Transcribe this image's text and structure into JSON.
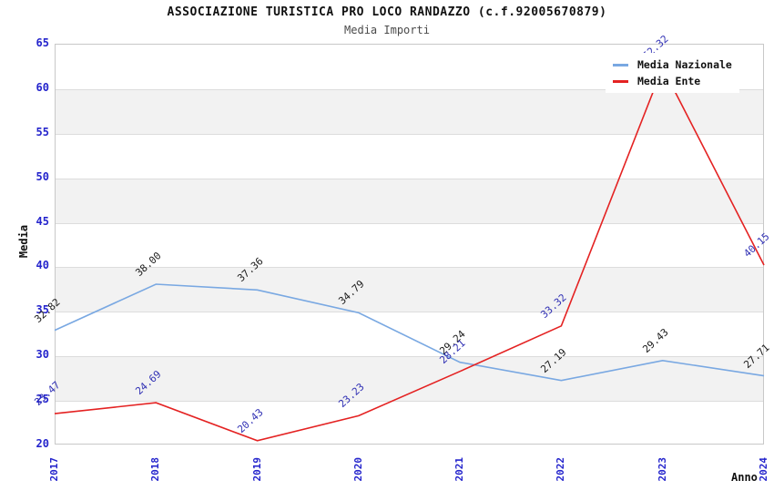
{
  "chart_data": {
    "type": "line",
    "title": "ASSOCIAZIONE TURISTICA PRO LOCO RANDAZZO (c.f.92005670879)",
    "subtitle": "Media Importi",
    "xlabel": "Anno",
    "ylabel": "Media",
    "ylim": [
      20,
      65
    ],
    "y_ticks": [
      20,
      25,
      30,
      35,
      40,
      45,
      50,
      55,
      60,
      65
    ],
    "grid": "horizontal-bands",
    "legend_position": "top-right",
    "categories": [
      "2017",
      "2018",
      "2019",
      "2020",
      "2021",
      "2022",
      "2023",
      "2024"
    ],
    "series": [
      {
        "name": "Media Nazionale",
        "color": "#79a8e2",
        "label_color": "#1a1a1a",
        "values": [
          32.82,
          38.0,
          37.36,
          34.79,
          29.24,
          27.19,
          29.43,
          27.71
        ]
      },
      {
        "name": "Media Ente",
        "color": "#e42222",
        "label_color": "#3030b4",
        "values": [
          23.47,
          24.69,
          20.43,
          23.23,
          28.21,
          33.32,
          62.32,
          40.15
        ]
      }
    ],
    "colors": {
      "tick_label": "#2424cc",
      "band_fill": "#f2f2f2",
      "gridline": "#dcdcdc",
      "plot_border": "#c8c8c8"
    }
  }
}
